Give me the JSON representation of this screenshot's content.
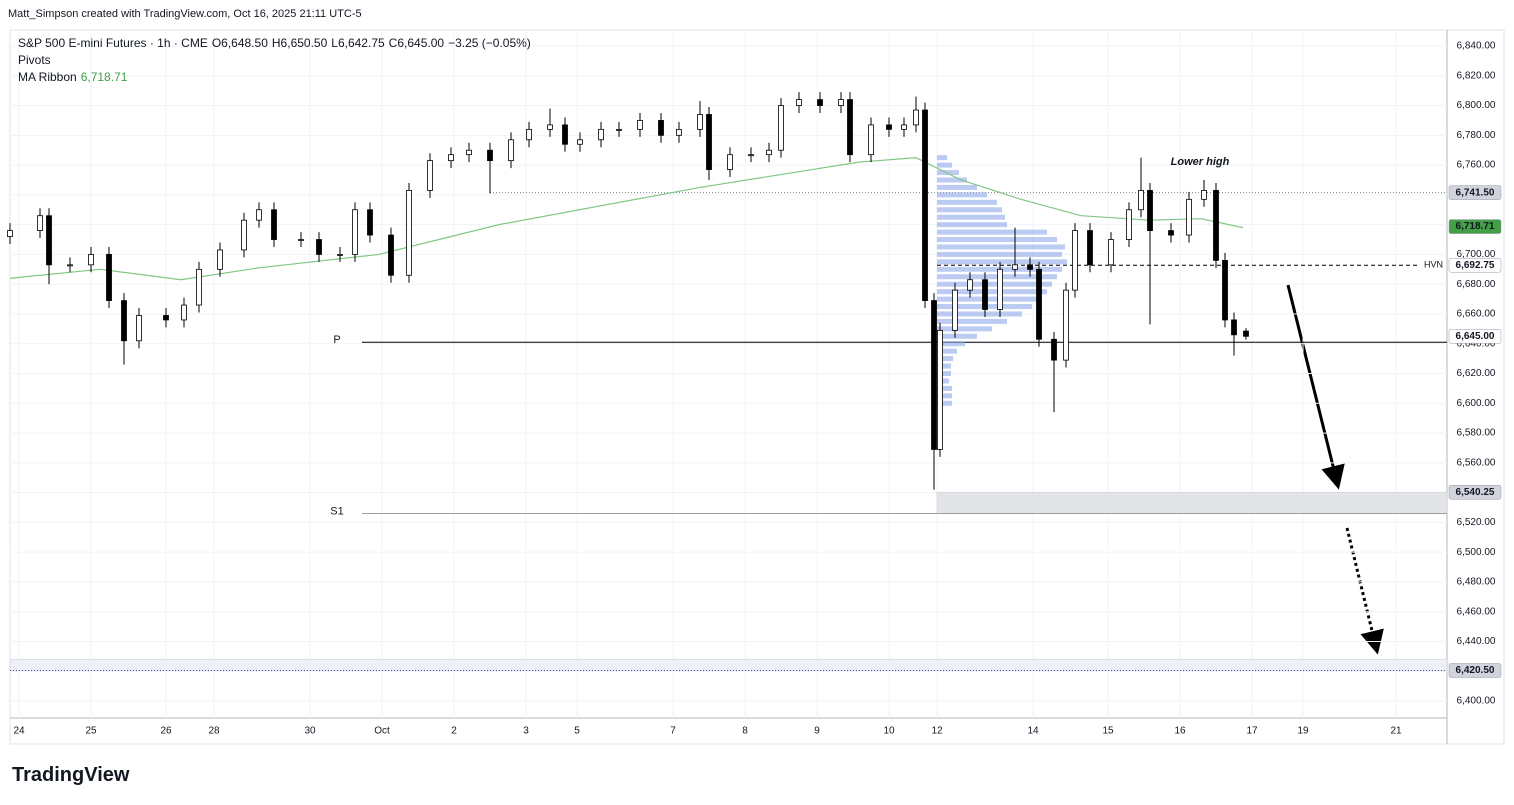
{
  "header": {
    "attribution": "Matt_Simpson created with TradingView.com, Oct 16, 2025 21:11 UTC-5",
    "symbol": "S&P 500 E-mini Futures · 1h · CME",
    "ohlc": [
      "O6,648.50",
      "H6,650.50",
      "L6,642.75",
      "C6,645.00"
    ],
    "change": "−3.25 (−0.05%)",
    "indicators": [
      "Pivots",
      "MA Ribbon"
    ],
    "ma_value": "6,718.71"
  },
  "footer": {
    "logo": "TradingView"
  },
  "chart_data": {
    "type": "candlestick",
    "xlim": [
      0,
      479
    ],
    "ylim": [
      6388.6,
      6850.75
    ],
    "xticks": [
      {
        "value": 3,
        "label": "24"
      },
      {
        "value": 27,
        "label": "25"
      },
      {
        "value": 52,
        "label": "26"
      },
      {
        "value": 68,
        "label": "28"
      },
      {
        "value": 100,
        "label": "30"
      },
      {
        "value": 124,
        "label": "Oct"
      },
      {
        "value": 148,
        "label": "2"
      },
      {
        "value": 172,
        "label": "3"
      },
      {
        "value": 189,
        "label": "5"
      },
      {
        "value": 221,
        "label": "7"
      },
      {
        "value": 245,
        "label": "8"
      },
      {
        "value": 269,
        "label": "9"
      },
      {
        "value": 293,
        "label": "10"
      },
      {
        "value": 309,
        "label": "12"
      },
      {
        "value": 341,
        "label": "14"
      },
      {
        "value": 366,
        "label": "15"
      },
      {
        "value": 390,
        "label": "16"
      },
      {
        "value": 414,
        "label": "17"
      },
      {
        "value": 431,
        "label": "19"
      },
      {
        "value": 462,
        "label": "21"
      }
    ],
    "yticks": [
      {
        "value": 6400,
        "label": "6,400.00"
      },
      {
        "value": 6420,
        "label": "6,420.00"
      },
      {
        "value": 6440,
        "label": "6,440.00"
      },
      {
        "value": 6460,
        "label": "6,460.00"
      },
      {
        "value": 6480,
        "label": "6,480.00"
      },
      {
        "value": 6500,
        "label": "6,500.00"
      },
      {
        "value": 6520,
        "label": "6,520.00"
      },
      {
        "value": 6540,
        "label": "6,540.00"
      },
      {
        "value": 6560,
        "label": "6,560.00"
      },
      {
        "value": 6580,
        "label": "6,580.00"
      },
      {
        "value": 6600,
        "label": "6,600.00"
      },
      {
        "value": 6620,
        "label": "6,620.00"
      },
      {
        "value": 6640,
        "label": "6,640.00"
      },
      {
        "value": 6660,
        "label": "6,660.00"
      },
      {
        "value": 6680,
        "label": "6,680.00"
      },
      {
        "value": 6700,
        "label": "6,700.00"
      },
      {
        "value": 6720,
        "label": "6,720.00"
      },
      {
        "value": 6740,
        "label": "6,740.00"
      },
      {
        "value": 6760,
        "label": "6,760.00"
      },
      {
        "value": 6780,
        "label": "6,780.00"
      },
      {
        "value": 6800,
        "label": "6,800.00"
      },
      {
        "value": 6820,
        "label": "6,820.00"
      },
      {
        "value": 6840,
        "label": "6,840.00"
      }
    ],
    "grid": true,
    "x": [
      0,
      10,
      13,
      20,
      27,
      33,
      38,
      43,
      52,
      58,
      63,
      70,
      78,
      83,
      88,
      97,
      103,
      110,
      115,
      120,
      127,
      133,
      140,
      147,
      153,
      160,
      167,
      173,
      180,
      185,
      190,
      197,
      203,
      210,
      217,
      223,
      230,
      233,
      240,
      247,
      253,
      257,
      263,
      270,
      277,
      280,
      287,
      293,
      298,
      302,
      305,
      308,
      310,
      315,
      320,
      325,
      330,
      335,
      340,
      343,
      348,
      352,
      355,
      360,
      367,
      373,
      377,
      380,
      387,
      393,
      398,
      402,
      405,
      408,
      412
    ],
    "open": [
      6712,
      6716,
      6726,
      6693,
      6693,
      6700,
      6669,
      6642,
      6659,
      6656,
      6666,
      6690,
      6703,
      6723,
      6730,
      6710,
      6710,
      6700,
      6700,
      6730,
      6713,
      6686,
      6743,
      6763,
      6767,
      6770,
      6763,
      6777,
      6784,
      6787,
      6774,
      6777,
      6784,
      6784,
      6790,
      6780,
      6784,
      6794,
      6757,
      6767,
      6767,
      6770,
      6800,
      6804,
      6800,
      6804,
      6767,
      6787,
      6784,
      6787,
      6797,
      6669,
      6569,
      6649,
      6676,
      6683,
      6663,
      6690,
      6693,
      6690,
      6643,
      6629,
      6676,
      6716,
      6693,
      6710,
      6730,
      6743,
      6716,
      6713,
      6737,
      6743,
      6696,
      6656,
      6648.5
    ],
    "high": [
      6721,
      6731,
      6731,
      6698,
      6705,
      6705,
      6674,
      6664,
      6664,
      6671,
      6695,
      6708,
      6728,
      6735,
      6735,
      6715,
      6715,
      6705,
      6735,
      6735,
      6718,
      6748,
      6768,
      6772,
      6775,
      6775,
      6782,
      6789,
      6798,
      6792,
      6782,
      6789,
      6789,
      6795,
      6795,
      6789,
      6803,
      6799,
      6772,
      6772,
      6775,
      6805,
      6809,
      6809,
      6809,
      6809,
      6792,
      6792,
      6792,
      6806,
      6802,
      6674,
      6654,
      6681,
      6688,
      6688,
      6695,
      6718,
      6698,
      6695,
      6648,
      6681,
      6721,
      6721,
      6715,
      6735,
      6765,
      6748,
      6721,
      6742,
      6750,
      6748,
      6701,
      6661,
      6650.5
    ],
    "low": [
      6707,
      6711,
      6680,
      6688,
      6688,
      6664,
      6626,
      6637,
      6651,
      6651,
      6661,
      6685,
      6698,
      6718,
      6705,
      6705,
      6695,
      6695,
      6695,
      6708,
      6681,
      6681,
      6738,
      6758,
      6762,
      6741,
      6758,
      6772,
      6779,
      6769,
      6769,
      6772,
      6779,
      6779,
      6775,
      6775,
      6779,
      6750,
      6752,
      6762,
      6762,
      6765,
      6795,
      6795,
      6795,
      6762,
      6762,
      6779,
      6779,
      6782,
      6664,
      6542,
      6564,
      6644,
      6671,
      6658,
      6658,
      6685,
      6685,
      6638,
      6594,
      6624,
      6671,
      6688,
      6688,
      6705,
      6725,
      6653,
      6708,
      6708,
      6732,
      6691,
      6651,
      6632,
      6642.75
    ],
    "close": [
      6716,
      6726,
      6693,
      6693,
      6700,
      6669,
      6642,
      6659,
      6656,
      6666,
      6690,
      6703,
      6723,
      6730,
      6710,
      6710,
      6700,
      6700,
      6730,
      6713,
      6686,
      6743,
      6763,
      6767,
      6770,
      6763,
      6777,
      6784,
      6787,
      6774,
      6777,
      6784,
      6784,
      6790,
      6780,
      6784,
      6794,
      6757,
      6767,
      6767,
      6770,
      6800,
      6804,
      6800,
      6804,
      6767,
      6787,
      6784,
      6787,
      6797,
      6669,
      6569,
      6649,
      6676,
      6683,
      6663,
      6690,
      6693,
      6690,
      6643,
      6629,
      6676,
      6716,
      6693,
      6710,
      6730,
      6743,
      6716,
      6713,
      6737,
      6743,
      6696,
      6656,
      6646,
      6645
    ],
    "ma": {
      "color": "#81c784",
      "x": [
        0,
        30,
        57,
        83,
        123,
        163,
        230,
        283,
        302,
        317,
        337,
        357,
        380,
        397,
        411
      ],
      "values": [
        6684,
        6690,
        6683,
        6691,
        6700,
        6720,
        6745,
        6762,
        6765,
        6750,
        6737,
        6726,
        6723,
        6724,
        6718
      ]
    },
    "volume_profile": {
      "color": "#90a9e8",
      "x_start": 309,
      "prices": [
        6600,
        6605,
        6610,
        6615,
        6620,
        6625,
        6630,
        6635,
        6640,
        6645,
        6650,
        6655,
        6660,
        6665,
        6670,
        6675,
        6680,
        6685,
        6690,
        6695,
        6700,
        6705,
        6710,
        6715,
        6720,
        6725,
        6730,
        6735,
        6740,
        6745,
        6750,
        6755,
        6760,
        6765
      ],
      "volumes": [
        15,
        15,
        15,
        12,
        14,
        14,
        16,
        20,
        28,
        40,
        55,
        70,
        85,
        95,
        100,
        110,
        115,
        120,
        125,
        130,
        125,
        128,
        120,
        110,
        70,
        68,
        65,
        60,
        50,
        40,
        30,
        22,
        15,
        10
      ]
    },
    "levels": [
      {
        "name": "P",
        "value": 6641,
        "color": "#000000"
      },
      {
        "name": "S1",
        "value": 6526,
        "color": "#9e9e9e"
      }
    ],
    "zones": [
      {
        "low": 6526,
        "high": 6540.25,
        "x_start": 309,
        "color": "#e3e4e8"
      },
      {
        "low": 6420.5,
        "high": 6428,
        "x_start": 0,
        "color": "#eef1f8"
      }
    ],
    "dotted_level": {
      "value": 6741.5,
      "x_start": 160
    },
    "hvn": {
      "label": "HVN",
      "value": 6692.75,
      "x_start": 309
    },
    "price_tags": [
      {
        "value": 6741.5,
        "label": "6,741.50",
        "color": "#d1d4dc",
        "text_color": "#131722"
      },
      {
        "value": 6718.71,
        "label": "6,718.71",
        "color": "#43a047",
        "text_color": "#ffffff"
      },
      {
        "value": 6692.75,
        "label": "6,692.75",
        "color": "#ffffff",
        "text_color": "#131722"
      },
      {
        "value": 6645,
        "label": "6,645.00",
        "color": "#ffffff",
        "text_color": "#131722"
      },
      {
        "value": 6540.25,
        "label": "6,540.25",
        "color": "#d1d4dc",
        "text_color": "#131722"
      },
      {
        "value": 6420.5,
        "label": "6,420.50",
        "color": "#d1d4dc",
        "text_color": "#131722"
      }
    ],
    "annotation": "Lower high"
  }
}
